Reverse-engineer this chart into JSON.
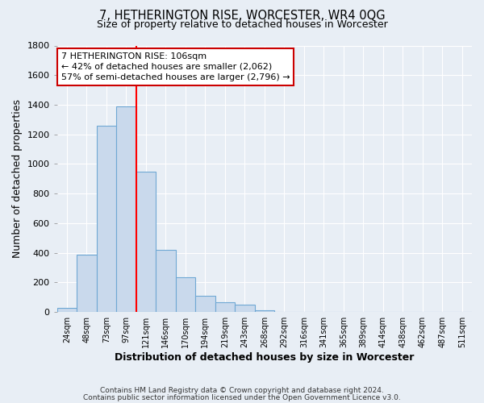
{
  "title": "7, HETHERINGTON RISE, WORCESTER, WR4 0QG",
  "subtitle": "Size of property relative to detached houses in Worcester",
  "xlabel": "Distribution of detached houses by size in Worcester",
  "ylabel": "Number of detached properties",
  "bin_labels": [
    "24sqm",
    "48sqm",
    "73sqm",
    "97sqm",
    "121sqm",
    "146sqm",
    "170sqm",
    "194sqm",
    "219sqm",
    "243sqm",
    "268sqm",
    "292sqm",
    "316sqm",
    "341sqm",
    "365sqm",
    "389sqm",
    "414sqm",
    "438sqm",
    "462sqm",
    "487sqm",
    "511sqm"
  ],
  "bar_values": [
    30,
    390,
    1260,
    1390,
    950,
    420,
    235,
    110,
    65,
    50,
    10,
    0,
    0,
    0,
    0,
    0,
    0,
    0,
    0,
    0,
    0
  ],
  "bar_color": "#c9d9ec",
  "bar_edge_color": "#6fa8d4",
  "background_color": "#e8eef5",
  "grid_color": "#ffffff",
  "ylim": [
    0,
    1800
  ],
  "yticks": [
    0,
    200,
    400,
    600,
    800,
    1000,
    1200,
    1400,
    1600,
    1800
  ],
  "annotation_title": "7 HETHERINGTON RISE: 106sqm",
  "annotation_line1": "← 42% of detached houses are smaller (2,062)",
  "annotation_line2": "57% of semi-detached houses are larger (2,796) →",
  "annotation_box_color": "#ffffff",
  "annotation_box_edge": "#cc0000",
  "footnote1": "Contains HM Land Registry data © Crown copyright and database right 2024.",
  "footnote2": "Contains public sector information licensed under the Open Government Licence v3.0.",
  "vline_pos": 4.0
}
